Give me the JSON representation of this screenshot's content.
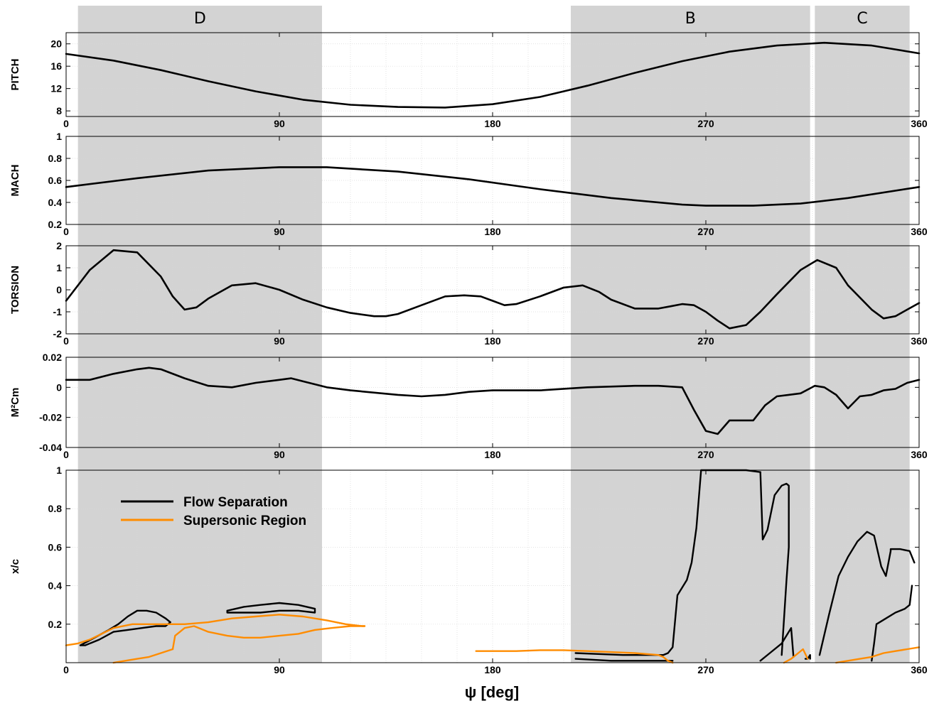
{
  "chart_data": {
    "type": "line",
    "xlabel": "ψ [deg]",
    "x_ticks": [
      "0",
      "90",
      "180",
      "270",
      "360"
    ],
    "xlim": [
      0,
      360
    ],
    "shaded_regions": [
      {
        "label": "D",
        "from": 5,
        "to": 108
      },
      {
        "label": "B",
        "from": 213,
        "to": 314
      },
      {
        "label": "C",
        "from": 316,
        "to": 356
      }
    ],
    "colors": {
      "shade": "#d3d3d3",
      "grid": "#d8d8d8",
      "flow_separation": "#000000",
      "supersonic_region": "#ff8c00"
    },
    "panels": [
      {
        "ylabel": "PITCH",
        "ylim": [
          7,
          22
        ],
        "y_ticks": [
          "8",
          "12",
          "16",
          "20"
        ],
        "y_tick_values": [
          8,
          12,
          16,
          20
        ],
        "series": [
          {
            "x": [
              0,
              20,
              40,
              60,
              80,
              100,
              120,
              140,
              160,
              180,
              200,
              220,
              240,
              260,
              280,
              300,
              320,
              340,
              360
            ],
            "y": [
              18.2,
              17.0,
              15.3,
              13.3,
              11.5,
              10.0,
              9.1,
              8.7,
              8.6,
              9.2,
              10.5,
              12.5,
              14.8,
              16.9,
              18.6,
              19.7,
              20.2,
              19.7,
              18.3
            ]
          }
        ]
      },
      {
        "ylabel": "MACH",
        "ylim": [
          0.2,
          1.0
        ],
        "y_ticks": [
          "0.2",
          "0.4",
          "0.6",
          "0.8",
          "1"
        ],
        "y_tick_values": [
          0.2,
          0.4,
          0.6,
          0.8,
          1.0
        ],
        "series": [
          {
            "x": [
              0,
              30,
              60,
              90,
              110,
              140,
              170,
              200,
              230,
              260,
              270,
              290,
              310,
              330,
              360
            ],
            "y": [
              0.54,
              0.62,
              0.69,
              0.72,
              0.72,
              0.68,
              0.61,
              0.52,
              0.44,
              0.38,
              0.37,
              0.37,
              0.39,
              0.44,
              0.54
            ]
          }
        ]
      },
      {
        "ylabel": "TORSION",
        "ylim": [
          -2,
          2
        ],
        "y_ticks": [
          "-2",
          "-1",
          "0",
          "1",
          "2"
        ],
        "y_tick_values": [
          -2,
          -1,
          0,
          1,
          2
        ],
        "series": [
          {
            "x": [
              0,
              10,
              20,
              30,
              40,
              45,
              50,
              55,
              60,
              70,
              80,
              90,
              100,
              110,
              120,
              130,
              135,
              140,
              150,
              160,
              168,
              175,
              180,
              185,
              190,
              200,
              210,
              218,
              225,
              230,
              240,
              250,
              255,
              260,
              265,
              270,
              275,
              280,
              287,
              293,
              300,
              310,
              317,
              325,
              330,
              340,
              345,
              350,
              355,
              360
            ],
            "y": [
              -0.5,
              0.9,
              1.8,
              1.7,
              0.6,
              -0.3,
              -0.9,
              -0.8,
              -0.4,
              0.2,
              0.3,
              0.0,
              -0.45,
              -0.8,
              -1.05,
              -1.2,
              -1.2,
              -1.1,
              -0.7,
              -0.3,
              -0.25,
              -0.3,
              -0.5,
              -0.7,
              -0.65,
              -0.3,
              0.1,
              0.2,
              -0.1,
              -0.45,
              -0.85,
              -0.85,
              -0.75,
              -0.65,
              -0.7,
              -1.0,
              -1.4,
              -1.75,
              -1.6,
              -1.0,
              -0.2,
              0.9,
              1.35,
              1.0,
              0.2,
              -0.9,
              -1.3,
              -1.2,
              -0.9,
              -0.6
            ]
          }
        ]
      },
      {
        "ylabel": "M²Cm",
        "ylim": [
          -0.04,
          0.02
        ],
        "y_ticks": [
          "-0.04",
          "-0.02",
          "0",
          "0.02"
        ],
        "y_tick_values": [
          -0.04,
          -0.02,
          0,
          0.02
        ],
        "series": [
          {
            "x": [
              0,
              10,
              20,
              30,
              35,
              40,
              50,
              60,
              70,
              80,
              90,
              95,
              100,
              110,
              120,
              140,
              150,
              160,
              170,
              180,
              200,
              220,
              240,
              250,
              260,
              265,
              270,
              275,
              280,
              285,
              290,
              295,
              300,
              305,
              310,
              316,
              320,
              325,
              330,
              335,
              340,
              345,
              350,
              355,
              360
            ],
            "y": [
              0.005,
              0.005,
              0.009,
              0.012,
              0.013,
              0.012,
              0.006,
              0.001,
              0.0,
              0.003,
              0.005,
              0.006,
              0.004,
              0.0,
              -0.002,
              -0.005,
              -0.006,
              -0.005,
              -0.003,
              -0.002,
              -0.002,
              0.0,
              0.001,
              0.001,
              0.0,
              -0.015,
              -0.029,
              -0.031,
              -0.022,
              -0.022,
              -0.022,
              -0.012,
              -0.006,
              -0.005,
              -0.004,
              0.001,
              0.0,
              -0.005,
              -0.014,
              -0.006,
              -0.005,
              -0.002,
              -0.001,
              0.003,
              0.005
            ]
          }
        ]
      },
      {
        "ylabel": "x/c",
        "ylim": [
          0,
          1.0
        ],
        "y_ticks": [
          "0.2",
          "0.4",
          "0.6",
          "0.8",
          "1"
        ],
        "y_tick_values": [
          0.2,
          0.4,
          0.6,
          0.8,
          1.0
        ],
        "legend": {
          "placement": "top-left",
          "entries": [
            "Flow Separation",
            "Supersonic Region"
          ]
        },
        "series": [
          {
            "name": "Flow Separation",
            "segments": [
              {
                "x": [
                  6,
                  12,
                  18,
                  22,
                  26,
                  30,
                  34,
                  38,
                  42,
                  44,
                  42,
                  38,
                  32,
                  26,
                  20,
                  14,
                  8,
                  6
                ],
                "y": [
                  0.09,
                  0.13,
                  0.17,
                  0.2,
                  0.24,
                  0.27,
                  0.27,
                  0.26,
                  0.23,
                  0.21,
                  0.19,
                  0.19,
                  0.18,
                  0.17,
                  0.16,
                  0.12,
                  0.09,
                  0.09
                ]
              },
              {
                "x": [
                  68,
                  75,
                  82,
                  90,
                  98,
                  105,
                  105,
                  98,
                  90,
                  82,
                  75,
                  68,
                  68
                ],
                "y": [
                  0.27,
                  0.29,
                  0.3,
                  0.31,
                  0.3,
                  0.28,
                  0.26,
                  0.27,
                  0.27,
                  0.26,
                  0.26,
                  0.26,
                  0.27
                ]
              },
              {
                "x": [
                  215,
                  235,
                  252,
                  254,
                  256,
                  258,
                  262,
                  264,
                  266,
                  268,
                  275,
                  282,
                  287,
                  293
                ],
                "y": [
                  0.05,
                  0.04,
                  0.04,
                  0.05,
                  0.08,
                  0.35,
                  0.43,
                  0.52,
                  0.7,
                  1.0,
                  1.0,
                  1.0,
                  1.0,
                  0.99
                ]
              },
              {
                "x": [
                  293,
                  294,
                  296,
                  299,
                  302,
                  304,
                  305,
                  305,
                  304,
                  302
                ],
                "y": [
                  0.99,
                  0.64,
                  0.69,
                  0.87,
                  0.92,
                  0.93,
                  0.92,
                  0.6,
                  0.42,
                  0.04
                ]
              },
              {
                "x": [
                  215,
                  230,
                  245,
                  256
                ],
                "y": [
                  0.02,
                  0.01,
                  0.01,
                  0.01
                ]
              },
              {
                "x": [
                  293,
                  297,
                  302,
                  306,
                  307
                ],
                "y": [
                  0.01,
                  0.05,
                  0.1,
                  0.18,
                  0.03
                ]
              },
              {
                "x": [
                  312,
                  313,
                  314,
                  314
                ],
                "y": [
                  0.02,
                  0.02,
                  0.04,
                  0.02
                ]
              },
              {
                "x": [
                  318,
                  322,
                  326,
                  330,
                  334,
                  338,
                  341,
                  344,
                  346,
                  348,
                  348,
                  350,
                  352,
                  356,
                  358
                ],
                "y": [
                  0.04,
                  0.25,
                  0.45,
                  0.55,
                  0.63,
                  0.68,
                  0.66,
                  0.5,
                  0.45,
                  0.58,
                  0.59,
                  0.59,
                  0.59,
                  0.58,
                  0.52
                ]
              },
              {
                "x": [
                  340,
                  341,
                  342,
                  346,
                  350,
                  354,
                  356,
                  357
                ],
                "y": [
                  0.01,
                  0.1,
                  0.2,
                  0.23,
                  0.26,
                  0.28,
                  0.3,
                  0.4
                ]
              }
            ]
          },
          {
            "name": "Supersonic Region",
            "segments": [
              {
                "x": [
                  0,
                  5,
                  10,
                  15,
                  20,
                  28,
                  35,
                  42,
                  50,
                  60,
                  70,
                  80,
                  90,
                  100,
                  110,
                  118,
                  125,
                  126
                ],
                "y": [
                  0.09,
                  0.1,
                  0.12,
                  0.15,
                  0.18,
                  0.2,
                  0.2,
                  0.2,
                  0.2,
                  0.21,
                  0.23,
                  0.24,
                  0.25,
                  0.24,
                  0.22,
                  0.2,
                  0.19,
                  0.19
                ]
              },
              {
                "x": [
                  126,
                  120,
                  112,
                  105,
                  98,
                  90,
                  82,
                  75,
                  68,
                  60,
                  54,
                  50,
                  46,
                  45
                ],
                "y": [
                  0.19,
                  0.19,
                  0.18,
                  0.17,
                  0.15,
                  0.14,
                  0.13,
                  0.13,
                  0.14,
                  0.16,
                  0.19,
                  0.18,
                  0.14,
                  0.07
                ]
              },
              {
                "x": [
                  45,
                  40,
                  35,
                  30,
                  25,
                  20
                ],
                "y": [
                  0.07,
                  0.05,
                  0.03,
                  0.02,
                  0.01,
                  0.0
                ]
              },
              {
                "x": [
                  173,
                  180,
                  190,
                  200,
                  210,
                  220,
                  230,
                  240,
                  250,
                  252,
                  254,
                  256
                ],
                "y": [
                  0.06,
                  0.06,
                  0.06,
                  0.065,
                  0.065,
                  0.06,
                  0.055,
                  0.05,
                  0.04,
                  0.03,
                  0.01,
                  0.0
                ]
              },
              {
                "x": [
                  303,
                  306,
                  309,
                  311,
                  313
                ],
                "y": [
                  0.0,
                  0.02,
                  0.05,
                  0.07,
                  0.02
                ]
              },
              {
                "x": [
                  325,
                  330,
                  335,
                  340,
                  345,
                  350,
                  355,
                  360
                ],
                "y": [
                  0.0,
                  0.01,
                  0.02,
                  0.03,
                  0.05,
                  0.06,
                  0.07,
                  0.08
                ]
              }
            ]
          }
        ]
      }
    ]
  }
}
